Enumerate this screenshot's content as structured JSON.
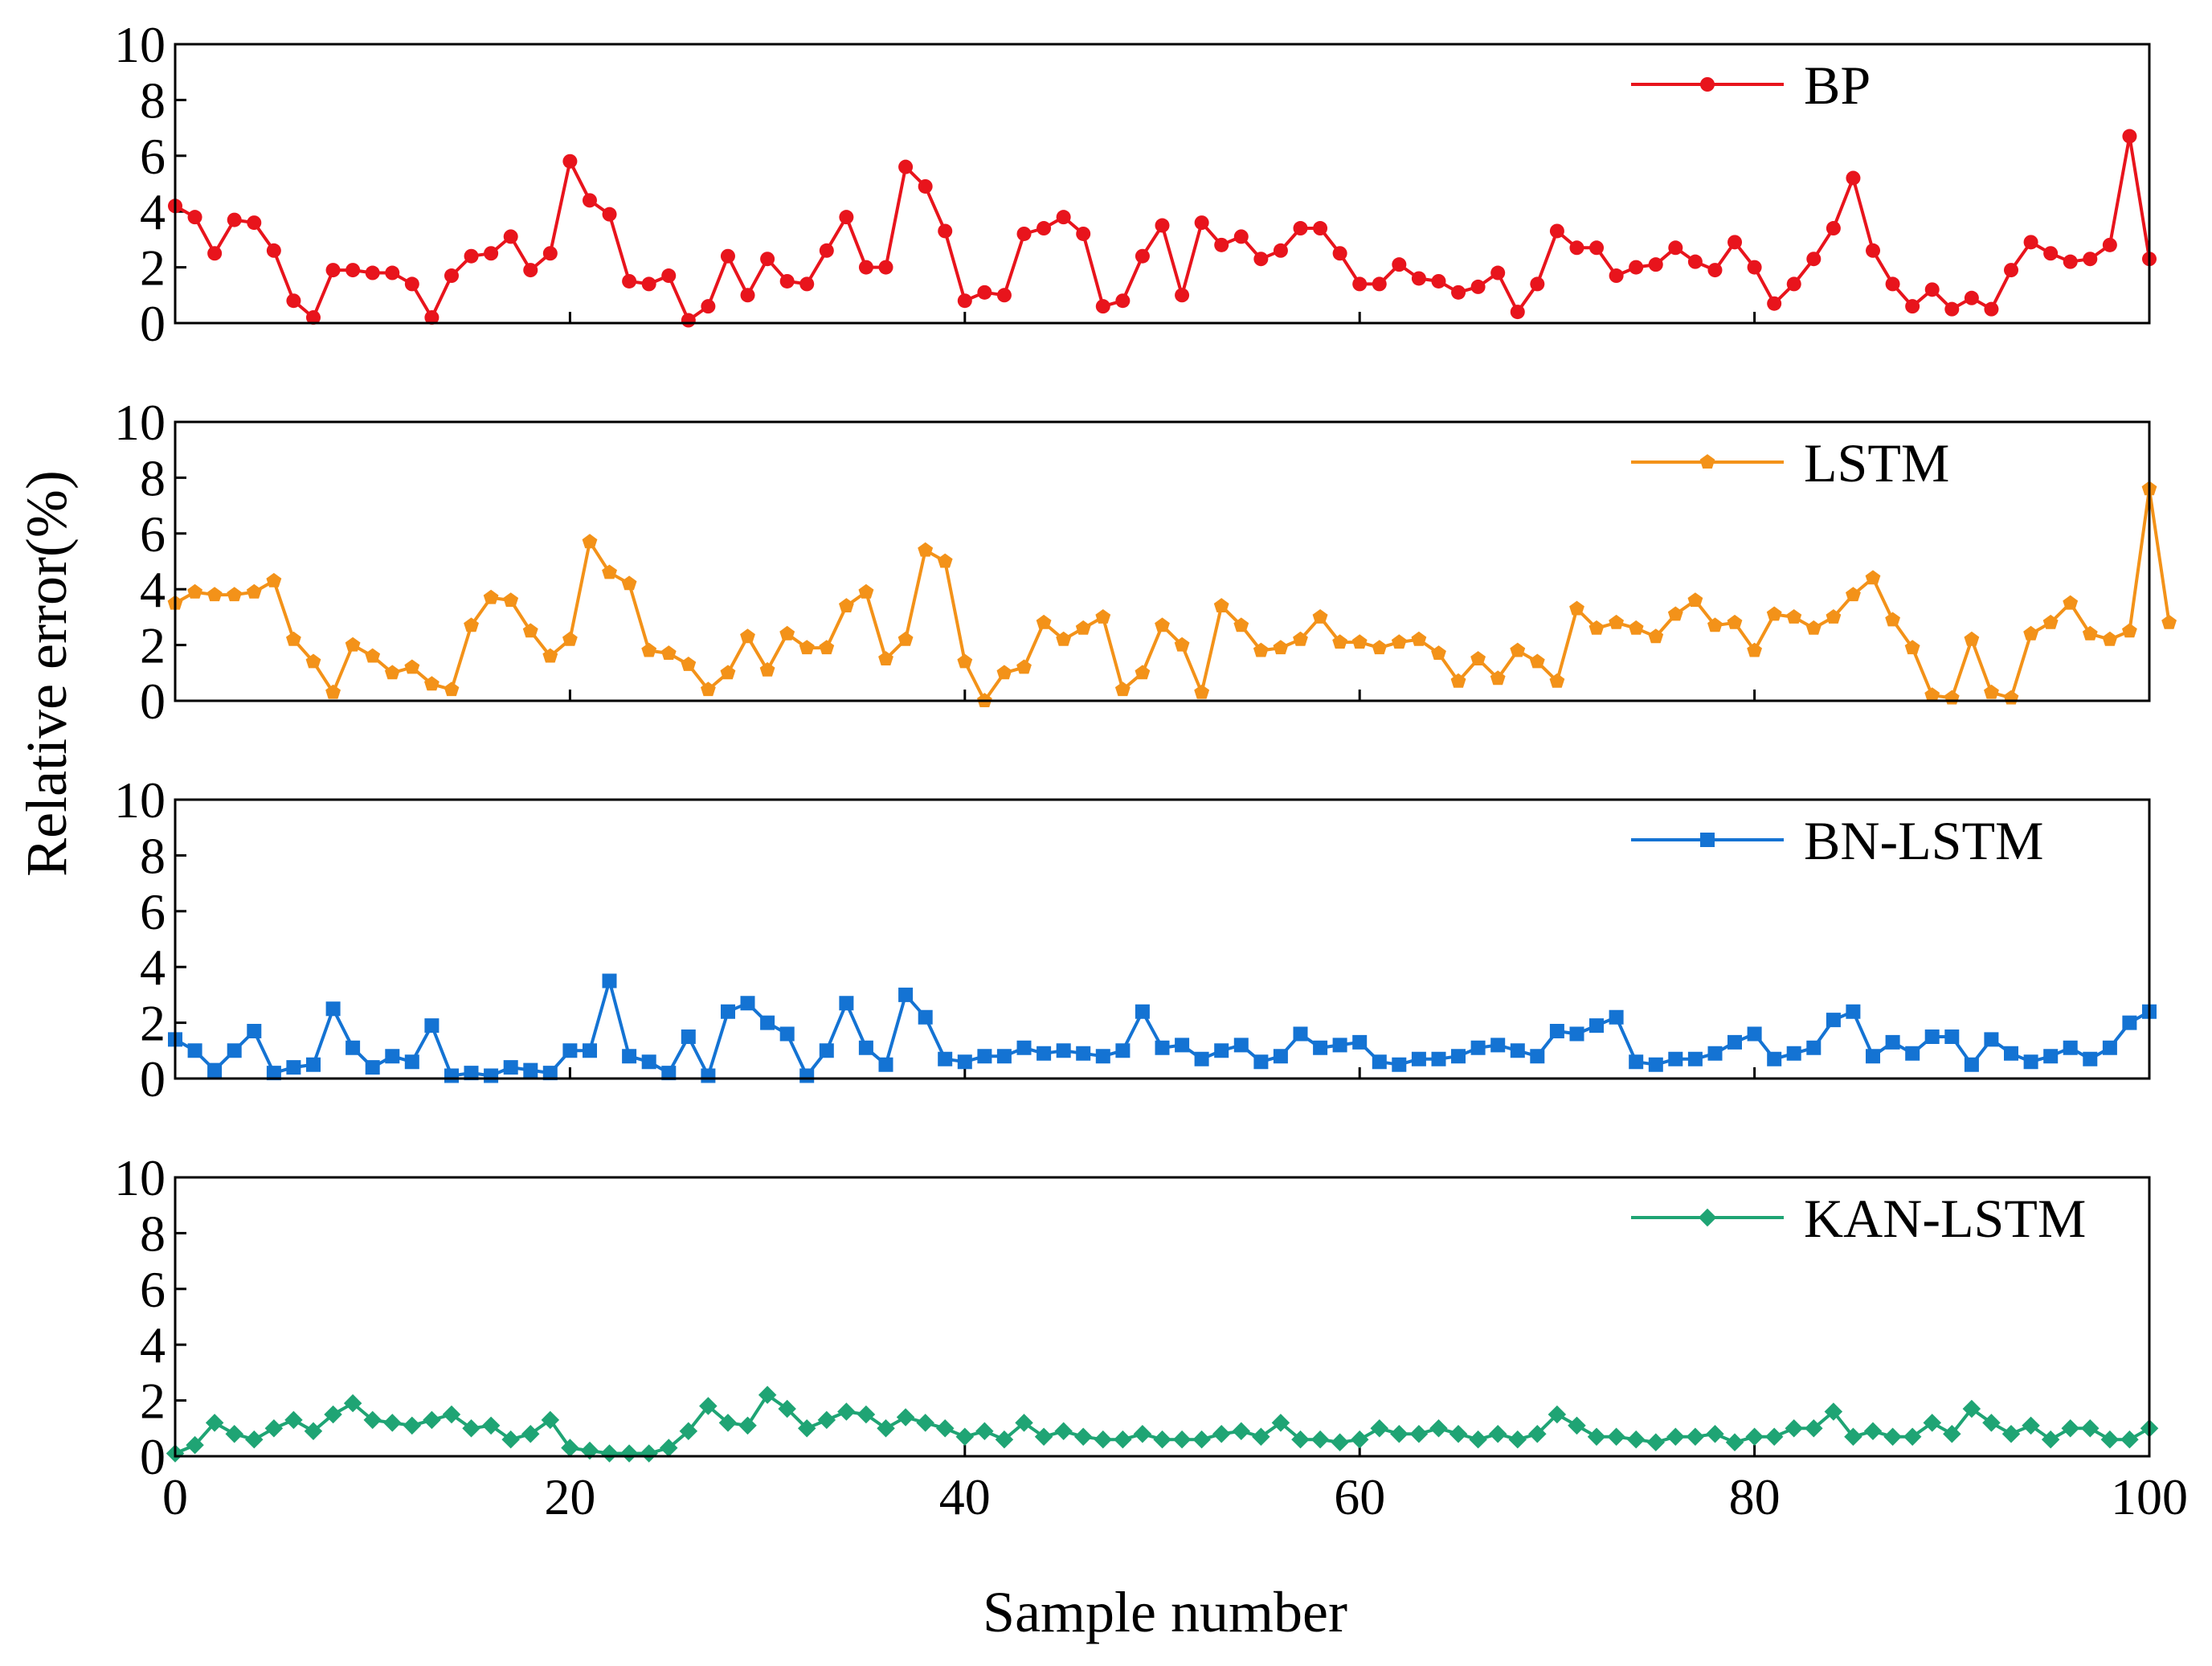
{
  "chart_data": {
    "type": "line",
    "layout": "4 stacked panels sharing x axis",
    "xlabel": "Sample number",
    "ylabel": "Relative error(%)",
    "xlim": [
      0,
      100
    ],
    "ylim": [
      0,
      10
    ],
    "x_ticks": [
      0,
      20,
      40,
      60,
      80,
      100
    ],
    "y_ticks": [
      0,
      2,
      4,
      6,
      8,
      10
    ],
    "legend_position": "top-right of each panel",
    "series": [
      {
        "name": "BP",
        "color": "#e8141c",
        "marker": "circle",
        "values": [
          4.2,
          3.8,
          2.5,
          3.7,
          3.6,
          2.6,
          0.8,
          0.2,
          1.9,
          1.9,
          1.8,
          1.8,
          1.4,
          0.2,
          1.7,
          2.4,
          2.5,
          3.1,
          1.9,
          2.5,
          5.8,
          4.4,
          3.9,
          1.5,
          1.4,
          1.7,
          0.1,
          0.6,
          2.4,
          1.0,
          2.3,
          1.5,
          1.4,
          2.6,
          3.8,
          2.0,
          2.0,
          5.6,
          4.9,
          3.3,
          0.8,
          1.1,
          1.0,
          3.2,
          3.4,
          3.8,
          3.2,
          0.6,
          0.8,
          2.4,
          3.5,
          1.0,
          3.6,
          2.8,
          3.1,
          2.3,
          2.6,
          3.4,
          3.4,
          2.5,
          1.4,
          1.4,
          2.1,
          1.6,
          1.5,
          1.1,
          1.3,
          1.8,
          0.4,
          1.4,
          3.3,
          2.7,
          2.7,
          1.7,
          2.0,
          2.1,
          2.7,
          2.2,
          1.9,
          2.9,
          2.0,
          0.7,
          1.4,
          2.3,
          3.4,
          5.2,
          2.6,
          1.4,
          0.6,
          1.2,
          0.5,
          0.9,
          0.5,
          1.9,
          2.9,
          2.5,
          2.2,
          2.3,
          2.8,
          6.7,
          2.3
        ]
      },
      {
        "name": "LSTM",
        "color": "#f39219",
        "marker": "pentagon",
        "values": [
          3.5,
          3.9,
          3.8,
          3.8,
          3.9,
          4.3,
          2.2,
          1.4,
          0.3,
          2.0,
          1.6,
          1.0,
          1.2,
          0.6,
          0.4,
          2.7,
          3.7,
          3.6,
          2.5,
          1.6,
          2.2,
          5.7,
          4.6,
          4.2,
          1.8,
          1.7,
          1.3,
          0.4,
          1.0,
          2.3,
          1.1,
          2.4,
          1.9,
          1.9,
          3.4,
          3.9,
          1.5,
          2.2,
          5.4,
          5.0,
          1.4,
          0.0,
          1.0,
          1.2,
          2.8,
          2.2,
          2.6,
          3.0,
          0.4,
          1.0,
          2.7,
          2.0,
          0.3,
          3.4,
          2.7,
          1.8,
          1.9,
          2.2,
          3.0,
          2.1,
          2.1,
          1.9,
          2.1,
          2.2,
          1.7,
          0.7,
          1.5,
          0.8,
          1.8,
          1.4,
          0.7,
          3.3,
          2.6,
          2.8,
          2.6,
          2.3,
          3.1,
          3.6,
          2.7,
          2.8,
          1.8,
          3.1,
          3.0,
          2.6,
          3.0,
          3.8,
          4.4,
          2.9,
          1.9,
          0.2,
          0.1,
          2.2,
          0.3,
          0.1,
          2.4,
          2.8,
          3.5,
          2.4,
          2.2,
          2.5,
          7.6,
          2.8
        ]
      },
      {
        "name": "BN-LSTM",
        "color": "#1473d3",
        "marker": "square",
        "values": [
          1.4,
          1.0,
          0.3,
          1.0,
          1.7,
          0.2,
          0.4,
          0.5,
          2.5,
          1.1,
          0.4,
          0.8,
          0.6,
          1.9,
          0.1,
          0.2,
          0.1,
          0.4,
          0.3,
          0.2,
          1.0,
          1.0,
          3.5,
          0.8,
          0.6,
          0.2,
          1.5,
          0.1,
          2.4,
          2.7,
          2.0,
          1.6,
          0.1,
          1.0,
          2.7,
          1.1,
          0.5,
          3.0,
          2.2,
          0.7,
          0.6,
          0.8,
          0.8,
          1.1,
          0.9,
          1.0,
          0.9,
          0.8,
          1.0,
          2.4,
          1.1,
          1.2,
          0.7,
          1.0,
          1.2,
          0.6,
          0.8,
          1.6,
          1.1,
          1.2,
          1.3,
          0.6,
          0.5,
          0.7,
          0.7,
          0.8,
          1.1,
          1.2,
          1.0,
          0.8,
          1.7,
          1.6,
          1.9,
          2.2,
          0.6,
          0.5,
          0.7,
          0.7,
          0.9,
          1.3,
          1.6,
          0.7,
          0.9,
          1.1,
          2.1,
          2.4,
          0.8,
          1.3,
          0.9,
          1.5,
          1.5,
          0.5,
          1.4,
          0.9,
          0.6,
          0.8,
          1.1,
          0.7,
          1.1,
          2.0,
          2.4
        ]
      },
      {
        "name": "KAN-LSTM",
        "color": "#1fa474",
        "marker": "diamond",
        "values": [
          0.1,
          0.4,
          1.2,
          0.8,
          0.6,
          1.0,
          1.3,
          0.9,
          1.5,
          1.9,
          1.3,
          1.2,
          1.1,
          1.3,
          1.5,
          1.0,
          1.1,
          0.6,
          0.8,
          1.3,
          0.3,
          0.2,
          0.1,
          0.1,
          0.1,
          0.3,
          0.9,
          1.8,
          1.2,
          1.1,
          2.2,
          1.7,
          1.0,
          1.3,
          1.6,
          1.5,
          1.0,
          1.4,
          1.2,
          1.0,
          0.7,
          0.9,
          0.6,
          1.2,
          0.7,
          0.9,
          0.7,
          0.6,
          0.6,
          0.8,
          0.6,
          0.6,
          0.6,
          0.8,
          0.9,
          0.7,
          1.2,
          0.6,
          0.6,
          0.5,
          0.6,
          1.0,
          0.8,
          0.8,
          1.0,
          0.8,
          0.6,
          0.8,
          0.6,
          0.8,
          1.5,
          1.1,
          0.7,
          0.7,
          0.6,
          0.5,
          0.7,
          0.7,
          0.8,
          0.5,
          0.7,
          0.7,
          1.0,
          1.0,
          1.6,
          0.7,
          0.9,
          0.7,
          0.7,
          1.2,
          0.8,
          1.7,
          1.2,
          0.8,
          1.1,
          0.6,
          1.0,
          1.0,
          0.6,
          0.6,
          1.0
        ]
      }
    ]
  }
}
